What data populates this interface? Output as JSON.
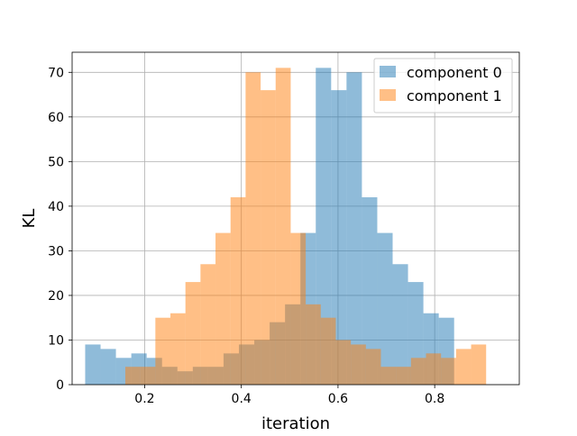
{
  "chart_data": {
    "type": "histogram",
    "xlabel": "iteration",
    "ylabel": "KL",
    "xlim": [
      0.05,
      0.975
    ],
    "ylim": [
      0,
      74.5
    ],
    "x_ticks": [
      0.2,
      0.4,
      0.6,
      0.8
    ],
    "x_tick_labels": [
      "0.2",
      "0.4",
      "0.6",
      "0.8"
    ],
    "y_ticks": [
      0,
      10,
      20,
      30,
      40,
      50,
      60,
      70
    ],
    "y_tick_labels": [
      "0",
      "10",
      "20",
      "30",
      "40",
      "50",
      "60",
      "70"
    ],
    "grid": true,
    "legend_position": "top-right",
    "series": [
      {
        "name": "component 0",
        "color": "#1f77b4",
        "alpha": 0.5,
        "bin_start": 0.077,
        "bin_width": 0.0318,
        "counts": [
          9,
          8,
          6,
          7,
          6,
          4,
          3,
          4,
          4,
          7,
          9,
          10,
          14,
          18,
          34,
          71,
          66,
          70,
          42,
          34,
          27,
          23,
          16,
          15
        ]
      },
      {
        "name": "component 1",
        "color": "#ff7f0e",
        "alpha": 0.5,
        "bin_start": 0.16,
        "bin_width": 0.0311,
        "counts": [
          4,
          4,
          15,
          16,
          23,
          27,
          34,
          42,
          70,
          66,
          71,
          34,
          18,
          15,
          10,
          9,
          8,
          4,
          4,
          6,
          7,
          6,
          8,
          9
        ]
      }
    ]
  }
}
